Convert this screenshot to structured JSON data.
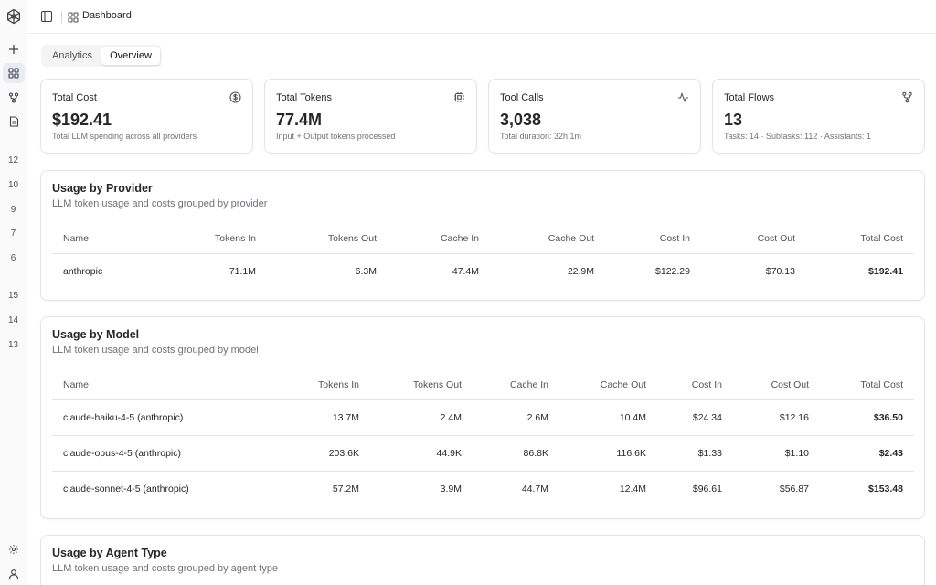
{
  "header": {
    "title": "Dashboard"
  },
  "sidebar": {
    "numbers_top": [
      "12",
      "10",
      "9",
      "7",
      "6"
    ],
    "numbers_bottom": [
      "15",
      "14",
      "13"
    ]
  },
  "tabs": [
    {
      "label": "Analytics",
      "active": false
    },
    {
      "label": "Overview",
      "active": true
    }
  ],
  "stats": [
    {
      "label": "Total Cost",
      "value": "$192.41",
      "sub": "Total LLM spending across all providers",
      "icon": "dollar-icon"
    },
    {
      "label": "Total Tokens",
      "value": "77.4M",
      "sub": "Input + Output tokens processed",
      "icon": "cpu-icon"
    },
    {
      "label": "Tool Calls",
      "value": "3,038",
      "sub": "Total duration: 32h 1m",
      "icon": "activity-icon"
    },
    {
      "label": "Total Flows",
      "value": "13",
      "sub": "Tasks: 14 · Subtasks: 112 · Assistants: 1",
      "icon": "git-fork-icon"
    }
  ],
  "provider": {
    "title": "Usage by Provider",
    "subtitle": "LLM token usage and costs grouped by provider",
    "columns": [
      "Name",
      "Tokens In",
      "Tokens Out",
      "Cache In",
      "Cache Out",
      "Cost In",
      "Cost Out",
      "Total Cost"
    ],
    "rows": [
      [
        "anthropic",
        "71.1M",
        "6.3M",
        "47.4M",
        "22.9M",
        "$122.29",
        "$70.13",
        "$192.41"
      ]
    ]
  },
  "model": {
    "title": "Usage by Model",
    "subtitle": "LLM token usage and costs grouped by model",
    "columns": [
      "Name",
      "Tokens In",
      "Tokens Out",
      "Cache In",
      "Cache Out",
      "Cost In",
      "Cost Out",
      "Total Cost"
    ],
    "rows": [
      [
        "claude-haiku-4-5 (anthropic)",
        "13.7M",
        "2.4M",
        "2.6M",
        "10.4M",
        "$24.34",
        "$12.16",
        "$36.50"
      ],
      [
        "claude-opus-4-5 (anthropic)",
        "203.6K",
        "44.9K",
        "86.8K",
        "116.6K",
        "$1.33",
        "$1.10",
        "$2.43"
      ],
      [
        "claude-sonnet-4-5 (anthropic)",
        "57.2M",
        "3.9M",
        "44.7M",
        "12.4M",
        "$96.61",
        "$56.87",
        "$153.48"
      ]
    ]
  },
  "agent": {
    "title": "Usage by Agent Type",
    "subtitle": "LLM token usage and costs grouped by agent type"
  }
}
